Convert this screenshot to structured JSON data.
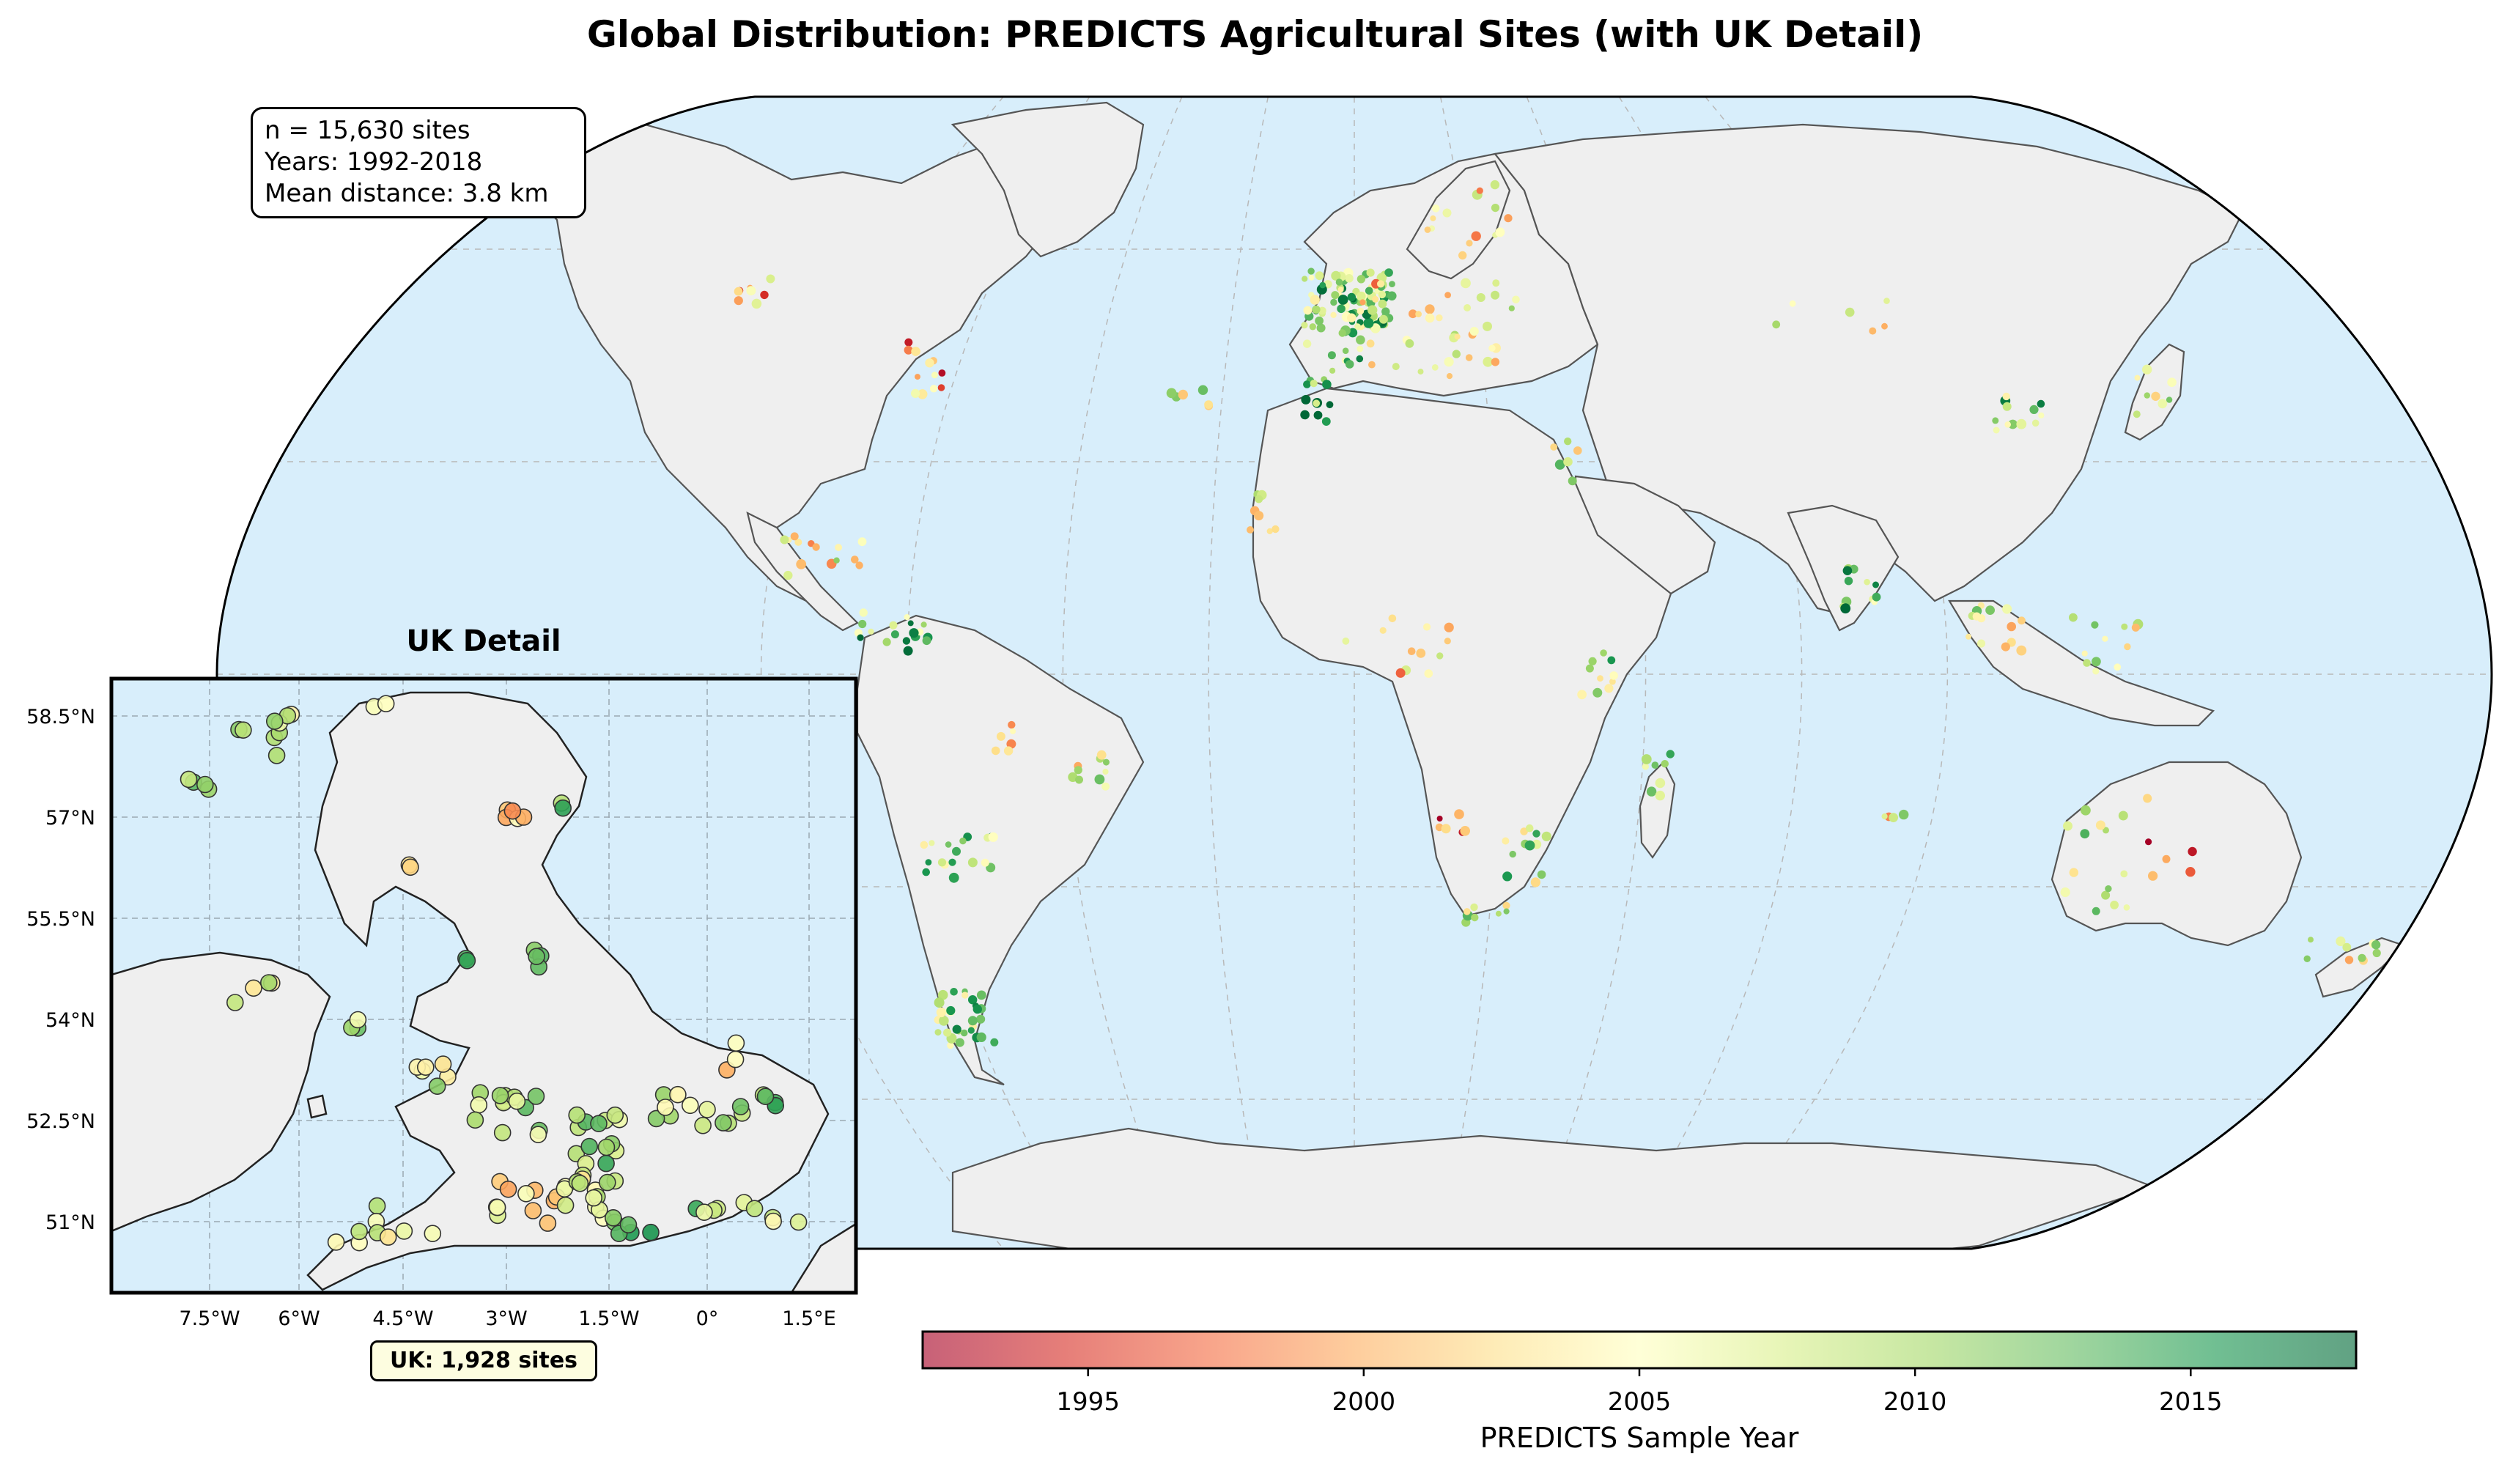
{
  "title": "Global Distribution: PREDICTS Agricultural Sites (with UK Detail)",
  "stats": {
    "n_sites": "n = 15,630 sites",
    "years": "Years: 1992-2018",
    "mean_distance": "Mean distance: 3.8 km"
  },
  "inset": {
    "title": "UK Detail",
    "lat_ticks": [
      "58.5°N",
      "57°N",
      "55.5°N",
      "54°N",
      "52.5°N",
      "51°N"
    ],
    "lon_ticks": [
      "7.5°W",
      "6°W",
      "4.5°W",
      "3°W",
      "1.5°W",
      "0°",
      "1.5°E"
    ],
    "badge": "UK: 1,928 sites"
  },
  "colorbar": {
    "label": "PREDICTS Sample Year",
    "range": [
      1992,
      2018
    ],
    "ticks": [
      "1995",
      "2000",
      "2005",
      "2010",
      "2015"
    ],
    "tick_values": [
      1995,
      2000,
      2005,
      2010,
      2015
    ],
    "colormap": "RdYlGn",
    "colors": [
      "#a50026",
      "#d73027",
      "#f46d43",
      "#fdae61",
      "#fee08b",
      "#ffffbf",
      "#d9ef8b",
      "#a6d96a",
      "#66bd63",
      "#1a9850",
      "#006837"
    ]
  },
  "colors": {
    "ocean": "#d8eefb",
    "land": "#efefef",
    "coast": "#555555",
    "grid": "#b8b8b8"
  }
}
